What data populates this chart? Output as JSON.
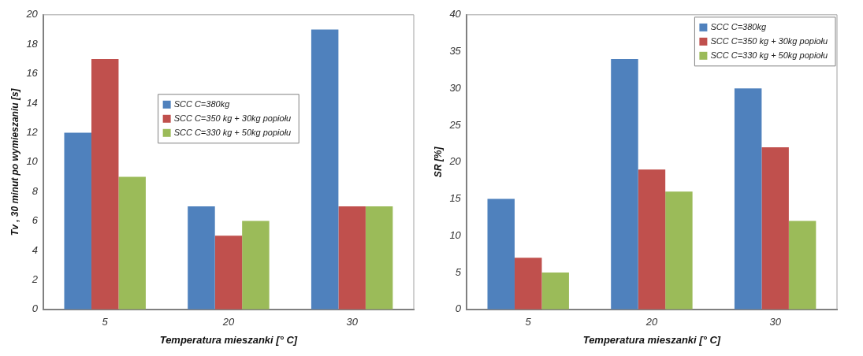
{
  "chart_data": [
    {
      "type": "bar",
      "xlabel": "Temperatura mieszanki [° C]",
      "ylabel": "Tv , 30 minut po wymieszaniu [s]",
      "categories": [
        "5",
        "20",
        "30"
      ],
      "series": [
        {
          "name": "SCC C=380kg",
          "color": "#4f81bd",
          "values": [
            12,
            7,
            19
          ]
        },
        {
          "name": "SCC C=350 kg + 30kg popiołu",
          "color": "#c0504d",
          "values": [
            17,
            5,
            7
          ]
        },
        {
          "name": "SCC C=330 kg + 50kg popiołu",
          "color": "#9bbb59",
          "values": [
            9,
            6,
            7
          ]
        }
      ],
      "ylim": [
        0,
        20
      ],
      "yticks": [
        0,
        2,
        4,
        6,
        8,
        10,
        12,
        14,
        16,
        18,
        20
      ],
      "grid": false,
      "legend": "center"
    },
    {
      "type": "bar",
      "xlabel": "Temperatura mieszanki [° C]",
      "ylabel": "SR [%]",
      "categories": [
        "5",
        "20",
        "30"
      ],
      "series": [
        {
          "name": "SCC C=380kg",
          "color": "#4f81bd",
          "values": [
            15,
            34,
            30
          ]
        },
        {
          "name": "SCC C=350 kg + 30kg popiołu",
          "color": "#c0504d",
          "values": [
            7,
            19,
            22
          ]
        },
        {
          "name": "SCC C=330 kg + 50kg popiołu",
          "color": "#9bbb59",
          "values": [
            5,
            16,
            12
          ]
        }
      ],
      "ylim": [
        0,
        40
      ],
      "yticks": [
        0,
        5,
        10,
        15,
        20,
        25,
        30,
        35,
        40
      ],
      "grid": false,
      "legend": "top right"
    }
  ]
}
